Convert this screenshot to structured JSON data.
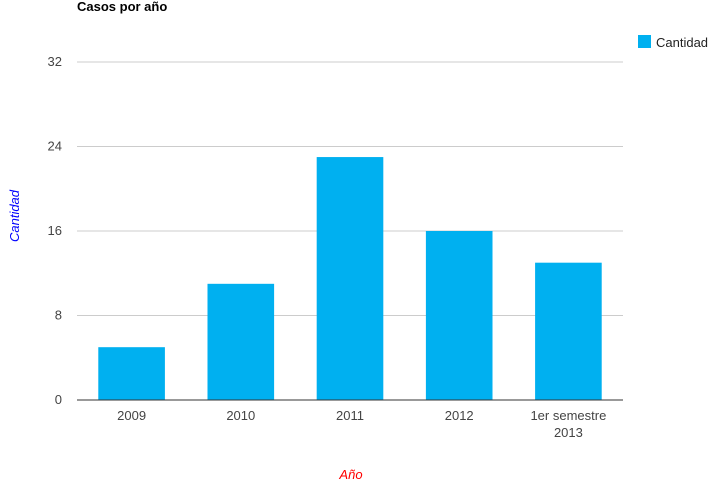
{
  "chart_data": {
    "type": "bar",
    "title": "Casos por año",
    "xlabel": "Año",
    "ylabel": "Cantidad",
    "categories": [
      [
        "2009"
      ],
      [
        "2010"
      ],
      [
        "2011"
      ],
      [
        "2012"
      ],
      [
        "1er semestre",
        "2013"
      ]
    ],
    "series": [
      {
        "name": "Cantidad",
        "values": [
          5,
          11,
          23,
          16,
          13
        ]
      }
    ],
    "ylim": [
      0,
      32
    ],
    "yticks": [
      "0",
      "8",
      "16",
      "24",
      "32"
    ],
    "grid": true,
    "legend_position": "right"
  },
  "colors": {
    "bar": "#00b0f0",
    "grid": "#cccccc",
    "baseline": "#333333",
    "xlabel": "#ff0000",
    "ylabel": "#0000ff"
  }
}
